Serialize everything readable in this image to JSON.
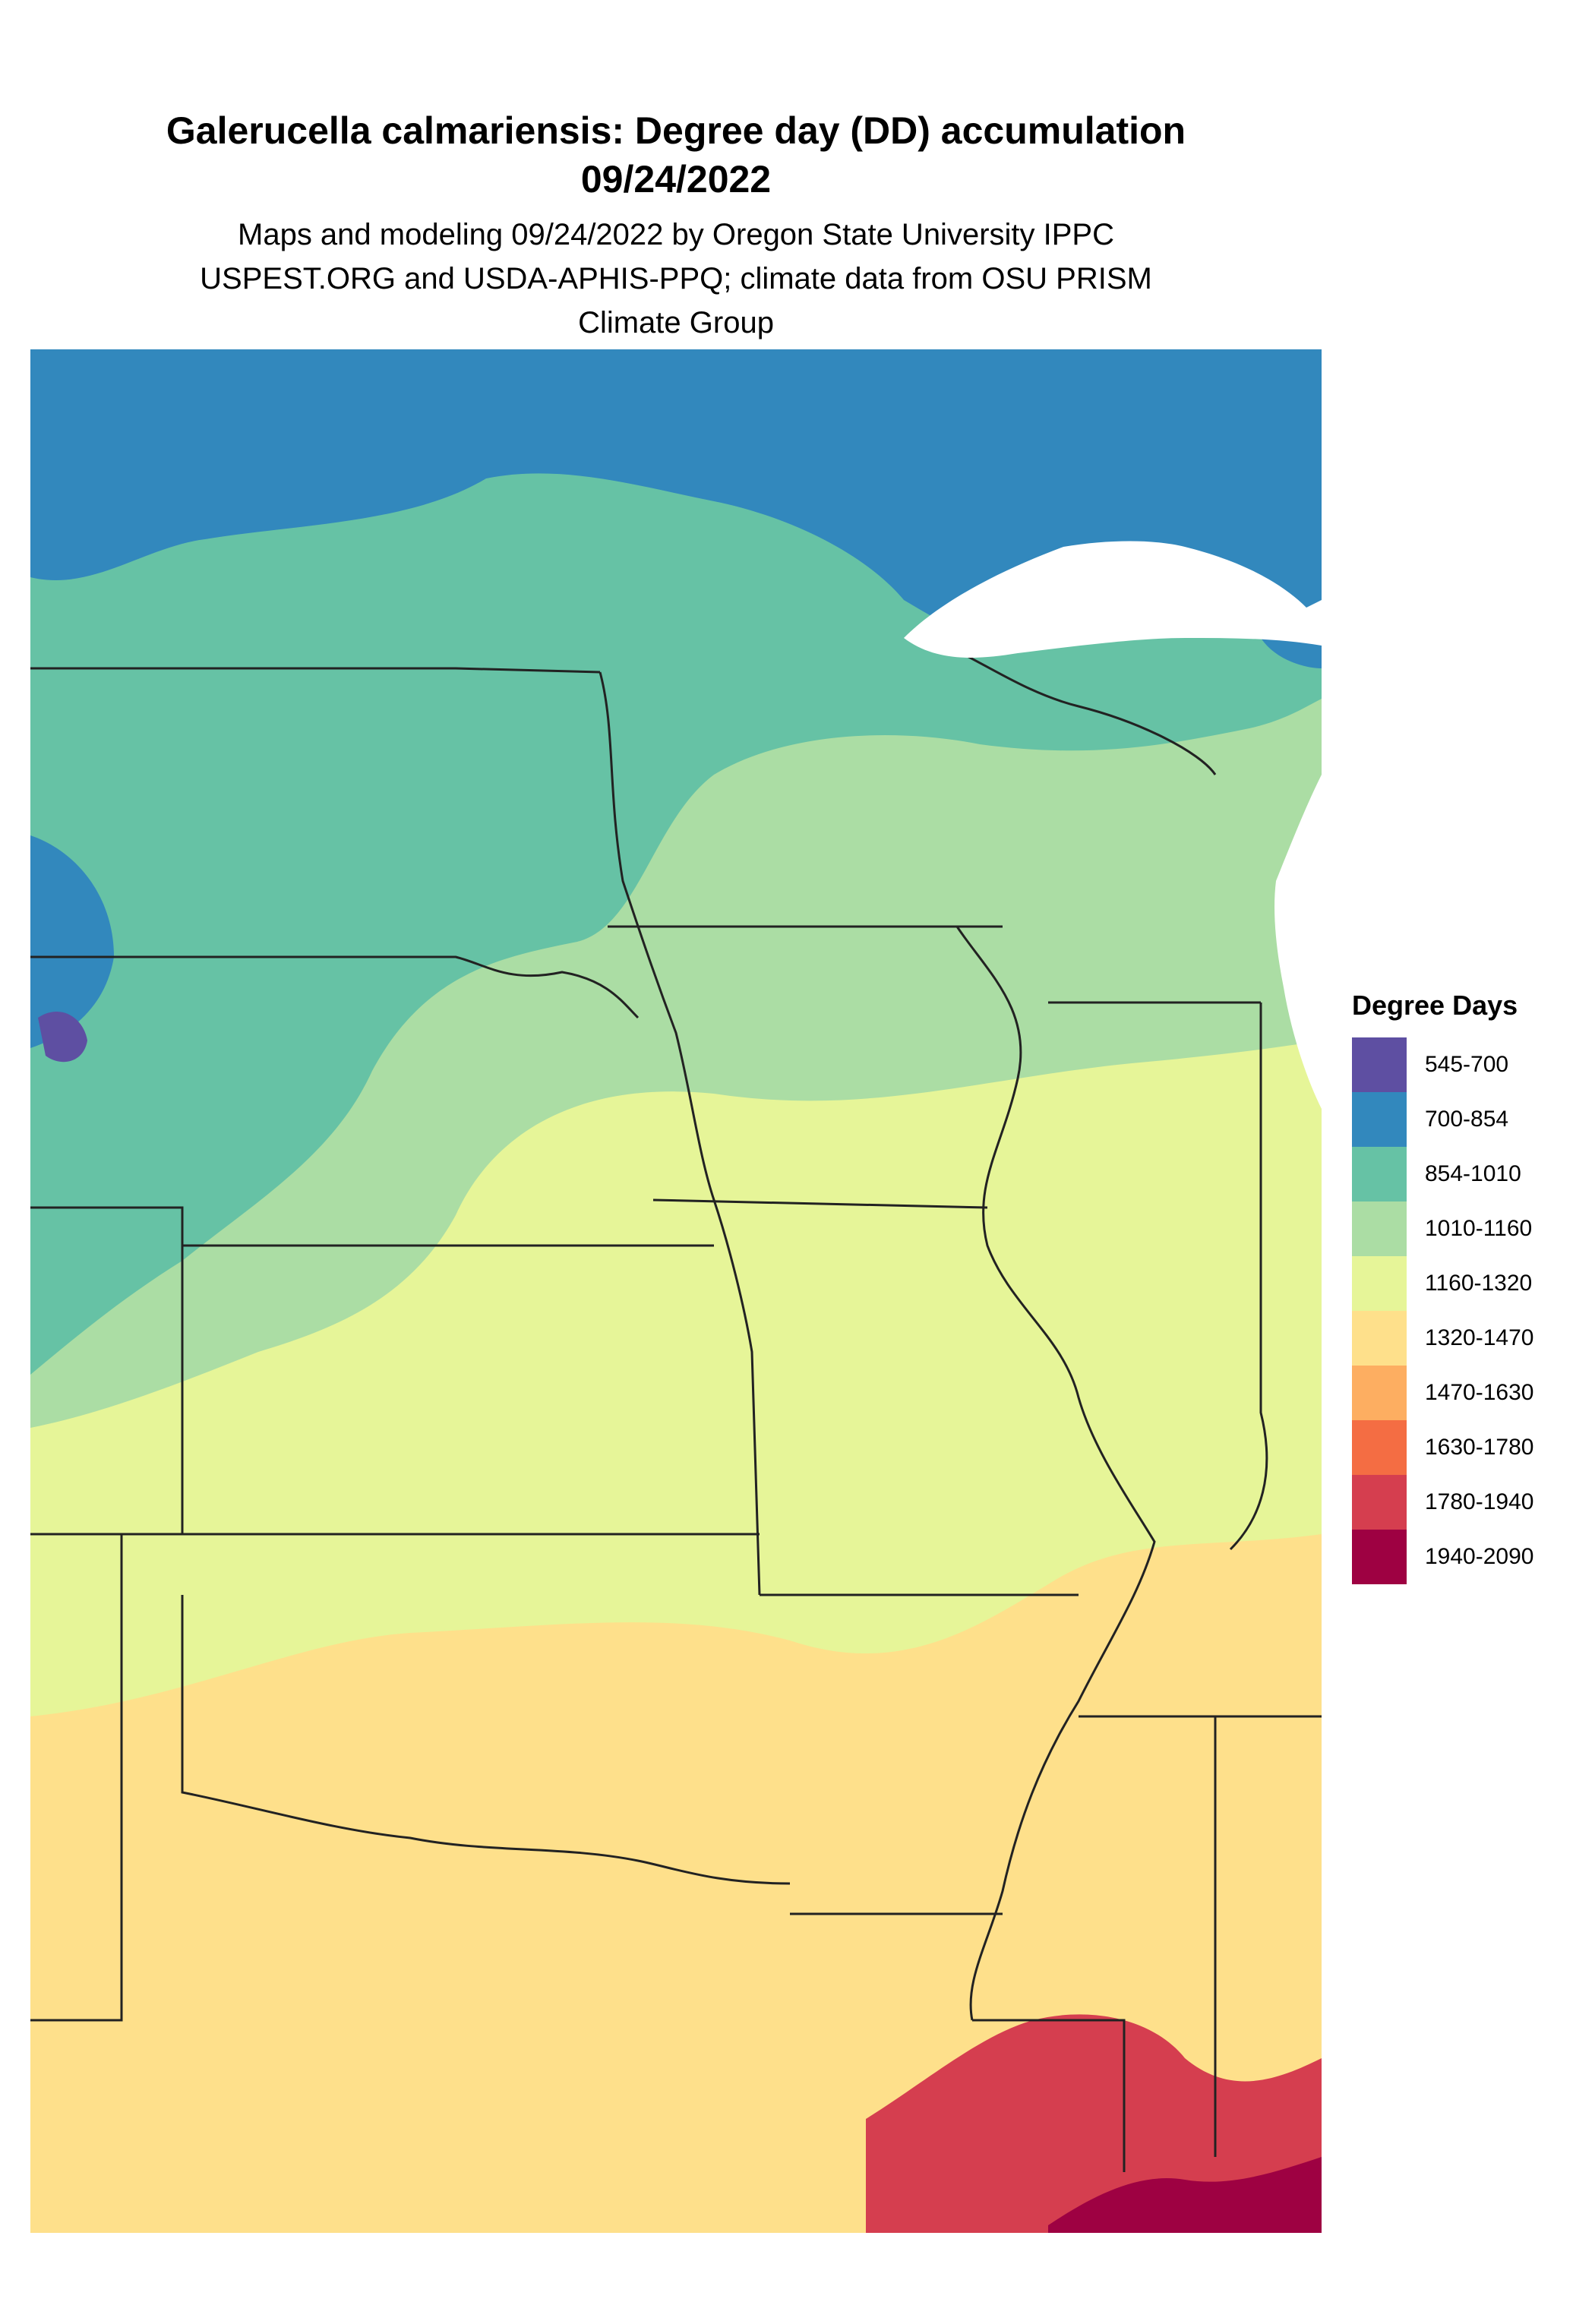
{
  "title": {
    "line1": "Galerucella calmariensis: Degree day (DD) accumulation",
    "line2": "09/24/2022",
    "subtitle": "Maps and modeling 09/24/2022 by Oregon State University IPPC USPEST.ORG and USDA-APHIS-PPQ; climate data from OSU PRISM Climate Group"
  },
  "legend": {
    "title": "Degree Days",
    "items": [
      {
        "label": "545-700",
        "color": "#5e4fa2"
      },
      {
        "label": "700-854",
        "color": "#3288bd"
      },
      {
        "label": "854-1010",
        "color": "#66c2a5"
      },
      {
        "label": "1010-1160",
        "color": "#abdda4"
      },
      {
        "label": "1160-1320",
        "color": "#e6f598"
      },
      {
        "label": "1320-1470",
        "color": "#fee08b"
      },
      {
        "label": "1470-1630",
        "color": "#fdae61"
      },
      {
        "label": "1630-1780",
        "color": "#f46d43"
      },
      {
        "label": "1780-1940",
        "color": "#d53e4f"
      },
      {
        "label": "1940-2090",
        "color": "#9e0142"
      }
    ]
  },
  "map": {
    "background": "#ffffff",
    "border_color": "#222222"
  }
}
